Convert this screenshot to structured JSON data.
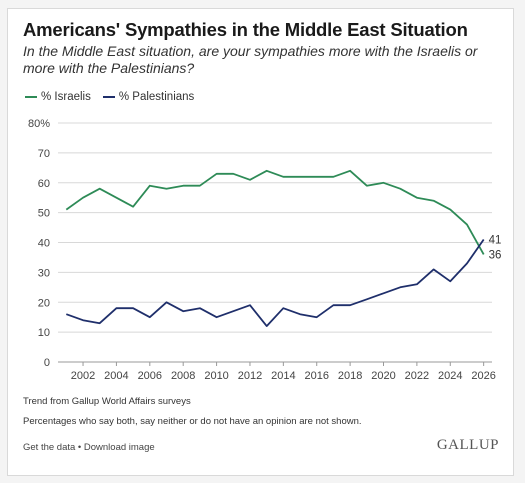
{
  "header": {
    "title": "Americans' Sympathies in the Middle East Situation",
    "subtitle": "In the Middle East situation, are your sympathies more with the Israelis or more with the Palestinians?"
  },
  "legend": {
    "israelis": "% Israelis",
    "palestinians": "% Palestinians"
  },
  "footer": {
    "note1": "Trend from Gallup World Affairs surveys",
    "note2": "Percentages who say both, say neither or do not have an opinion are not shown.",
    "links": "Get the data • Download image",
    "brand": "GALLUP"
  },
  "colors": {
    "israelis": "#2e8b57",
    "palestinians": "#1f2f6b",
    "grid": "#d8d8d8"
  },
  "chart_data": {
    "type": "line",
    "title": "Americans' Sympathies in the Middle East Situation",
    "xlabel": "",
    "ylabel": "",
    "ylim": [
      0,
      80
    ],
    "yticks": [
      "0",
      "10",
      "20",
      "30",
      "40",
      "50",
      "60",
      "70",
      "80%"
    ],
    "xticks": [
      "2002",
      "2004",
      "2006",
      "2008",
      "2010",
      "2012",
      "2014",
      "2016",
      "2018",
      "2020",
      "2022",
      "2024",
      "2026"
    ],
    "xlim": [
      2000.5,
      2026.5
    ],
    "grid": true,
    "legend_position": "top-left",
    "x": [
      2001,
      2002,
      2003,
      2004,
      2005,
      2006,
      2007,
      2008,
      2009,
      2010,
      2011,
      2012,
      2013,
      2014,
      2015,
      2016,
      2017,
      2018,
      2019,
      2020,
      2021,
      2022,
      2023,
      2024,
      2025,
      2026
    ],
    "series": [
      {
        "name": "% Israelis",
        "key": "israelis",
        "values": [
          51,
          55,
          58,
          55,
          52,
          59,
          58,
          59,
          59,
          63,
          63,
          61,
          64,
          62,
          62,
          62,
          62,
          64,
          59,
          60,
          58,
          55,
          54,
          51,
          46,
          36
        ],
        "end_label": "36"
      },
      {
        "name": "% Palestinians",
        "key": "palestinians",
        "values": [
          16,
          14,
          13,
          18,
          18,
          15,
          20,
          17,
          18,
          15,
          17,
          19,
          12,
          18,
          16,
          15,
          19,
          19,
          21,
          23,
          25,
          26,
          31,
          27,
          33,
          41
        ],
        "end_label": "41"
      }
    ]
  }
}
